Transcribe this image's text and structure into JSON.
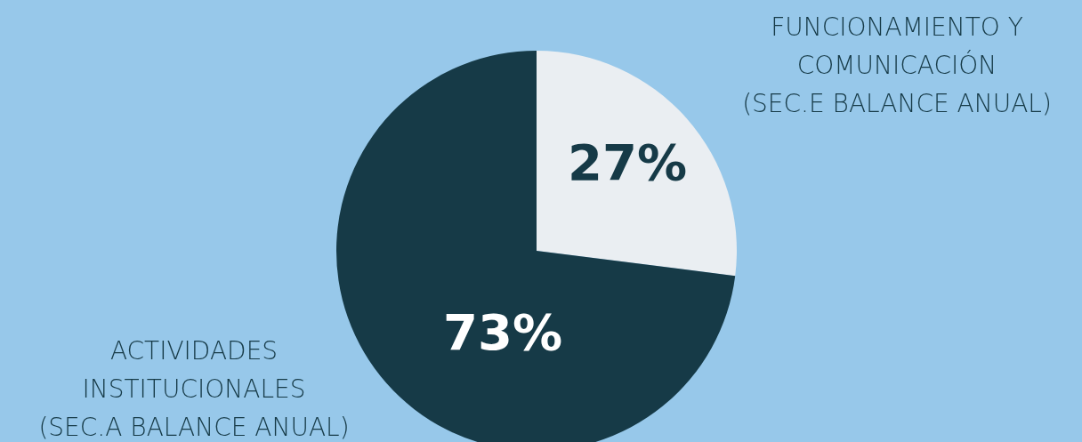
{
  "chart_data": {
    "type": "pie",
    "categories": [
      "FUNCIONAMIENTO Y\nCOMUNICACIÓN\n(SEC.E BALANCE ANUAL)",
      "ACTIVIDADES\nINSTITUCIONALES\n(SEC.A BALANCE ANUAL)"
    ],
    "values": [
      27,
      73
    ],
    "colors": [
      "#eaeef2",
      "#163a47"
    ],
    "value_labels": [
      "27%",
      "73%"
    ]
  }
}
